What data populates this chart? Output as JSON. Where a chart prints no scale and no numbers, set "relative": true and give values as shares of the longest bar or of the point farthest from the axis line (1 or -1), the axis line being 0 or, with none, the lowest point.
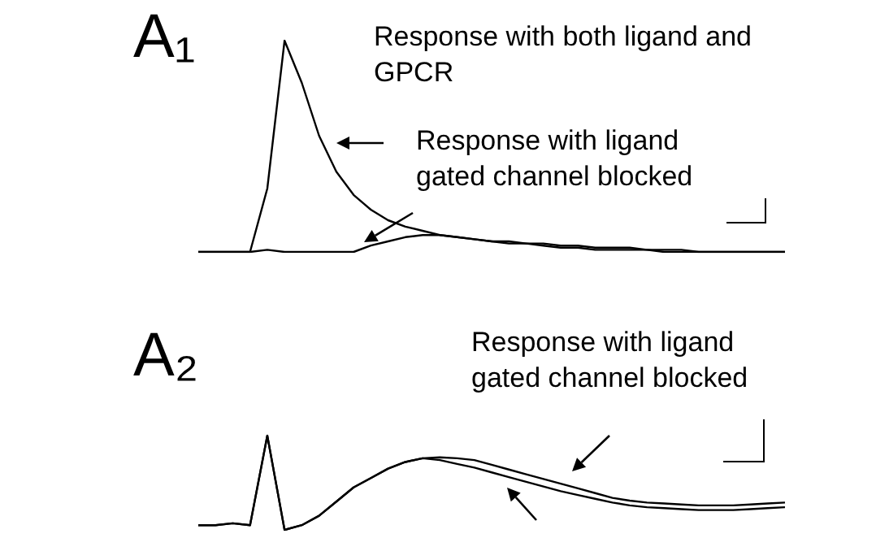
{
  "chart_data": [
    {
      "type": "line",
      "title": "A₁",
      "relative": true,
      "legend": false,
      "tick_labels": false,
      "marker": "none",
      "line_style": "solid",
      "categories": [
        null,
        null,
        null,
        null,
        null,
        null,
        null,
        null,
        null,
        null,
        null,
        null,
        null,
        null,
        null,
        null,
        null,
        null,
        null,
        null,
        null,
        null,
        null,
        null,
        null,
        null,
        null,
        null,
        null,
        null,
        null,
        null,
        null,
        null,
        null
      ],
      "series": [
        {
          "color": "#000000",
          "values": [
            0,
            0,
            0,
            0,
            0.3,
            1,
            0.8,
            0.55,
            0.38,
            0.27,
            0.2,
            0.15,
            0.12,
            0.1,
            0.08,
            0.07,
            0.06,
            0.05,
            0.05,
            0.04,
            0.04,
            0.03,
            0.03,
            0.02,
            0.02,
            0.02,
            0.01,
            0.01,
            0.01,
            0,
            0,
            0,
            0,
            0,
            0
          ]
        },
        {
          "color": "#000000",
          "values": [
            0,
            0,
            0,
            0,
            0.01,
            0,
            0,
            0,
            0,
            0,
            0.03,
            0.05,
            0.07,
            0.08,
            0.08,
            0.07,
            0.06,
            0.05,
            0.04,
            0.04,
            0.03,
            0.02,
            0.02,
            0.01,
            0.01,
            0.01,
            0.01,
            0,
            0,
            0,
            0,
            0,
            0,
            0,
            0
          ]
        }
      ],
      "annotations": [
        "Response with both ligand and GPCR",
        "Response with ligand gated channel blocked"
      ]
    },
    {
      "type": "line",
      "title": "A₂",
      "relative": true,
      "legend": false,
      "tick_labels": false,
      "marker": "none",
      "line_style": "solid",
      "categories": [
        null,
        null,
        null,
        null,
        null,
        null,
        null,
        null,
        null,
        null,
        null,
        null,
        null,
        null,
        null,
        null,
        null,
        null,
        null,
        null,
        null,
        null,
        null,
        null,
        null,
        null,
        null,
        null,
        null,
        null,
        null,
        null,
        null,
        null,
        null
      ],
      "series": [
        {
          "color": "#000000",
          "values": [
            0.05,
            0.05,
            0.07,
            0.05,
            1,
            0,
            0.05,
            0.15,
            0.3,
            0.45,
            0.55,
            0.65,
            0.72,
            0.76,
            0.77,
            0.76,
            0.74,
            0.69,
            0.64,
            0.59,
            0.54,
            0.49,
            0.44,
            0.39,
            0.34,
            0.31,
            0.29,
            0.28,
            0.27,
            0.26,
            0.26,
            0.26,
            0.27,
            0.28,
            0.29
          ]
        },
        {
          "color": "#000000",
          "values": [
            0.05,
            0.05,
            0.07,
            0.05,
            1,
            0,
            0.05,
            0.15,
            0.3,
            0.45,
            0.55,
            0.65,
            0.72,
            0.76,
            0.74,
            0.7,
            0.66,
            0.61,
            0.56,
            0.51,
            0.46,
            0.41,
            0.37,
            0.33,
            0.29,
            0.26,
            0.24,
            0.23,
            0.22,
            0.21,
            0.21,
            0.21,
            0.22,
            0.23,
            0.24
          ]
        }
      ],
      "annotations": [
        "Response with ligand gated channel blocked"
      ]
    }
  ]
}
